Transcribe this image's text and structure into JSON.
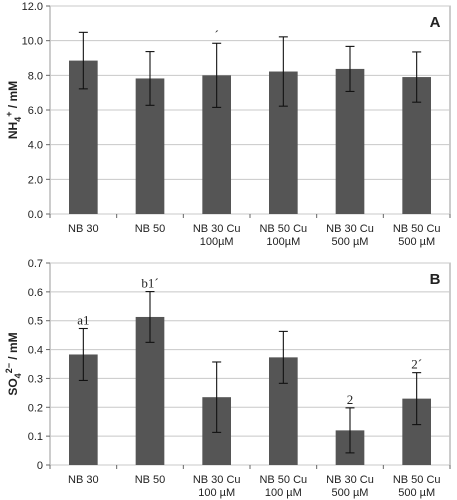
{
  "chart_data": [
    {
      "type": "bar",
      "panel_label": "A",
      "ylabel": "NH4+ / mM",
      "ylabel_main": "NH",
      "ylabel_sub": "4",
      "ylabel_sup": "+",
      "ylabel_unit": " / mM",
      "ylim": [
        0,
        12
      ],
      "yticks": [
        "0.0",
        "2.0",
        "4.0",
        "6.0",
        "8.0",
        "10.0",
        "12.0"
      ],
      "ytick_values": [
        0,
        2,
        4,
        6,
        8,
        10,
        12
      ],
      "grid": true,
      "bar_color": "#555555",
      "categories": [
        [
          "NB 30"
        ],
        [
          "NB 50"
        ],
        [
          "NB 30 Cu",
          "100µM"
        ],
        [
          "NB 50 Cu",
          "100µM"
        ],
        [
          "NB 30 Cu",
          "500 µM"
        ],
        [
          "NB 50 Cu",
          "500 µM"
        ]
      ],
      "values": [
        8.85,
        7.82,
        8.0,
        8.22,
        8.37,
        7.9
      ],
      "errors": [
        1.63,
        1.55,
        1.85,
        2.0,
        1.3,
        1.45
      ],
      "annotations": [
        "",
        "",
        "´",
        "",
        "",
        ""
      ]
    },
    {
      "type": "bar",
      "panel_label": "B",
      "ylabel": "SO42- / mM",
      "ylabel_main": "SO",
      "ylabel_sub": "4",
      "ylabel_sup": "2−",
      "ylabel_unit": " / mM",
      "ylim": [
        0,
        0.7
      ],
      "yticks": [
        "0",
        "0.1",
        "0.2",
        "0.3",
        "0.4",
        "0.5",
        "0.6",
        "0.7"
      ],
      "ytick_values": [
        0,
        0.1,
        0.2,
        0.3,
        0.4,
        0.5,
        0.6,
        0.7
      ],
      "grid": true,
      "bar_color": "#555555",
      "categories": [
        [
          "NB 30"
        ],
        [
          "NB 50"
        ],
        [
          "NB 30 Cu",
          "100 µM"
        ],
        [
          "NB 50 Cu",
          "100 µM"
        ],
        [
          "NB 30 Cu",
          "500 µM"
        ],
        [
          "NB 50 Cu",
          "500 µM"
        ]
      ],
      "values": [
        0.383,
        0.513,
        0.235,
        0.373,
        0.12,
        0.23
      ],
      "errors": [
        0.09,
        0.088,
        0.122,
        0.09,
        0.078,
        0.09
      ],
      "annotations": [
        "a1",
        "b1´",
        "",
        "",
        "2",
        "2´"
      ]
    }
  ]
}
